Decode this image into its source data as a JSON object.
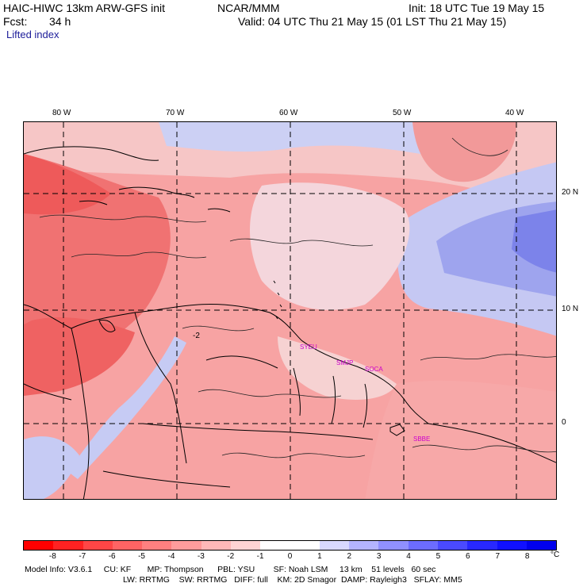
{
  "header": {
    "model_title": "HAIC-HIWC 13km ARW-GFS init",
    "org": "NCAR/MMM",
    "init_time": "Init: 18 UTC Tue 19 May 15",
    "fcst_label": "Fcst:",
    "fcst_value": "34 h",
    "valid_time": "Valid: 04 UTC Thu 21 May 15 (01 LST Thu 21 May 15)",
    "field": "Lifted index"
  },
  "map": {
    "lon_labels": [
      "80 W",
      "70 W",
      "60 W",
      "50 W",
      "40 W"
    ],
    "lat_labels": [
      "20 N",
      "10 N",
      "0"
    ],
    "stations": [
      "SYEU",
      "SMJP",
      "SOCA",
      "SBBE"
    ]
  },
  "colorbar": {
    "unit": "°C",
    "labels": [
      "-8",
      "-7",
      "-6",
      "-5",
      "-4",
      "-3",
      "-2",
      "-1",
      "0",
      "1",
      "2",
      "3",
      "4",
      "5",
      "6",
      "7",
      "8"
    ],
    "colors": [
      "#ff0000",
      "#ff2222",
      "#ff4646",
      "#ff6464",
      "#ff8080",
      "#ff9c9c",
      "#ffb8b8",
      "#ffd4d4",
      "#ffffff",
      "#ffffff",
      "#d8d8ff",
      "#b4b4ff",
      "#9090ff",
      "#6c6cff",
      "#4a4aff",
      "#2828ff",
      "#1010ff",
      "#0000ee"
    ]
  },
  "model_info": {
    "line1": "Model Info: V3.6.1     CU: KF       MP: Thompson      PBL: YSU        SF: Noah LSM     13 km    51 levels   60 sec",
    "line2": "LW: RRTMG    SW: RRTMG   DIFF: full    KM: 2D Smagor  DAMP: Rayleigh3   SFLAY: MM5"
  }
}
